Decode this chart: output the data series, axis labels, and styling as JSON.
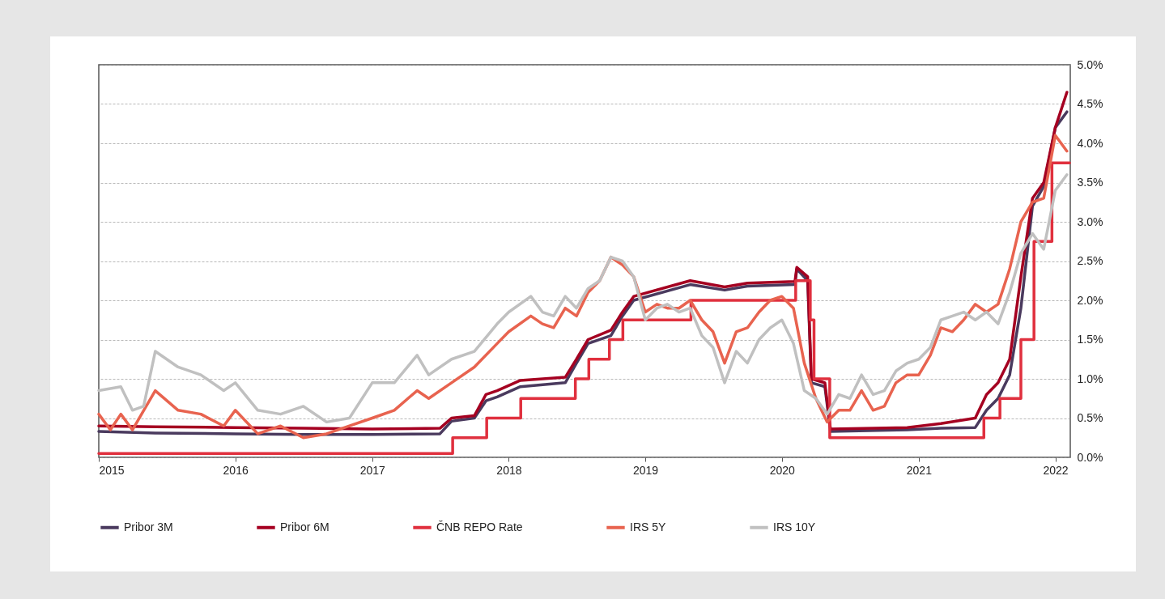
{
  "chart_data": {
    "type": "line",
    "xlim": [
      "2015-01-01",
      "2022-02-10"
    ],
    "xticks": [
      "2015",
      "2016",
      "2017",
      "2018",
      "2019",
      "2020",
      "2021",
      "2022"
    ],
    "ylim": [
      0,
      5
    ],
    "yticks": [
      {
        "value": 0,
        "label": "0.0%"
      },
      {
        "value": 0.5,
        "label": "0.5%"
      },
      {
        "value": 1,
        "label": "1.0%"
      },
      {
        "value": 1.5,
        "label": "1.5%"
      },
      {
        "value": 2,
        "label": "2.0%"
      },
      {
        "value": 2.5,
        "label": "2.5%"
      },
      {
        "value": 3,
        "label": "3.0%"
      },
      {
        "value": 3.5,
        "label": "3.5%"
      },
      {
        "value": 4,
        "label": "4.0%"
      },
      {
        "value": 4.5,
        "label": "4.5%"
      },
      {
        "value": 5,
        "label": "5.0%"
      }
    ],
    "grid": "y",
    "legend": "bottom",
    "line_style": "solid",
    "marker": "none",
    "series": [
      {
        "name": "Pribor 3M",
        "color": "#4a3a5e",
        "x": [
          "2015-01",
          "2015-06",
          "2016-01",
          "2016-07",
          "2017-01",
          "2017-07",
          "2017-08",
          "2017-10",
          "2017-11",
          "2017-12",
          "2018-02",
          "2018-06",
          "2018-07",
          "2018-08",
          "2018-10",
          "2018-11",
          "2018-12",
          "2019-05",
          "2019-08",
          "2019-10",
          "2020-02-05",
          "2020-02-10",
          "2020-03-10",
          "2020-03-20",
          "2020-04-25",
          "2020-05-10",
          "2020-12",
          "2021-03",
          "2021-06",
          "2021-07",
          "2021-08",
          "2021-09",
          "2021-10",
          "2021-11",
          "2021-12",
          "2022-01",
          "2022-02"
        ],
        "values": [
          0.33,
          0.31,
          0.3,
          0.29,
          0.29,
          0.3,
          0.46,
          0.5,
          0.72,
          0.77,
          0.9,
          0.95,
          1.2,
          1.45,
          1.55,
          1.8,
          2.0,
          2.2,
          2.13,
          2.18,
          2.2,
          2.4,
          2.25,
          0.95,
          0.9,
          0.33,
          0.35,
          0.37,
          0.38,
          0.6,
          0.75,
          1.05,
          1.9,
          3.2,
          3.45,
          4.2,
          4.4
        ]
      },
      {
        "name": "Pribor 6M",
        "color": "#a50021",
        "x": [
          "2015-01",
          "2015-06",
          "2016-01",
          "2016-07",
          "2017-01",
          "2017-07",
          "2017-08",
          "2017-10",
          "2017-11",
          "2017-12",
          "2018-02",
          "2018-06",
          "2018-07",
          "2018-08",
          "2018-10",
          "2018-11",
          "2018-12",
          "2019-05",
          "2019-08",
          "2019-10",
          "2020-02-05",
          "2020-02-10",
          "2020-03-10",
          "2020-03-20",
          "2020-04-25",
          "2020-05-10",
          "2020-12",
          "2021-03",
          "2021-06",
          "2021-07",
          "2021-08",
          "2021-09",
          "2021-10",
          "2021-11",
          "2021-12",
          "2022-01",
          "2022-02"
        ],
        "values": [
          0.4,
          0.39,
          0.38,
          0.37,
          0.36,
          0.37,
          0.5,
          0.53,
          0.8,
          0.85,
          0.98,
          1.02,
          1.25,
          1.5,
          1.62,
          1.85,
          2.05,
          2.25,
          2.17,
          2.22,
          2.24,
          2.42,
          2.3,
          1.0,
          0.95,
          0.36,
          0.38,
          0.43,
          0.5,
          0.8,
          0.95,
          1.25,
          2.3,
          3.3,
          3.5,
          4.2,
          4.65
        ]
      },
      {
        "name": "ČNB REPO Rate",
        "color": "#e0303e",
        "type": "step",
        "x": [
          "2015-01-01",
          "2017-08-04",
          "2017-11-03",
          "2018-02-02",
          "2018-06-28",
          "2018-08-03",
          "2018-09-27",
          "2018-11-02",
          "2019-05-03",
          "2020-02-07",
          "2020-03-17",
          "2020-03-27",
          "2020-05-08",
          "2021-06-24",
          "2021-08-06",
          "2021-10-01",
          "2021-11-05",
          "2021-12-23",
          "2022-02-08"
        ],
        "values": [
          0.05,
          0.25,
          0.5,
          0.75,
          1.0,
          1.25,
          1.5,
          1.75,
          2.0,
          2.25,
          1.75,
          1.0,
          0.25,
          0.5,
          0.75,
          1.5,
          2.75,
          3.75,
          3.75
        ]
      },
      {
        "name": "IRS 5Y",
        "color": "#e8634f",
        "x": [
          "2015-01",
          "2015-02",
          "2015-03",
          "2015-04",
          "2015-06",
          "2015-08",
          "2015-10",
          "2015-12",
          "2016-01",
          "2016-03",
          "2016-05",
          "2016-07",
          "2016-09",
          "2016-11",
          "2017-01",
          "2017-03",
          "2017-05",
          "2017-06",
          "2017-08",
          "2017-10",
          "2017-12",
          "2018-01",
          "2018-03",
          "2018-04",
          "2018-05",
          "2018-06",
          "2018-07",
          "2018-08",
          "2018-09",
          "2018-10",
          "2018-11",
          "2018-12",
          "2019-01",
          "2019-02",
          "2019-03",
          "2019-04",
          "2019-05",
          "2019-06",
          "2019-07",
          "2019-08",
          "2019-09",
          "2019-10",
          "2019-11",
          "2019-12",
          "2020-01",
          "2020-02",
          "2020-03",
          "2020-04",
          "2020-05",
          "2020-06",
          "2020-07",
          "2020-08",
          "2020-09",
          "2020-10",
          "2020-11",
          "2020-12",
          "2021-01",
          "2021-02",
          "2021-03",
          "2021-04",
          "2021-05",
          "2021-06",
          "2021-07",
          "2021-08",
          "2021-09",
          "2021-10",
          "2021-11",
          "2021-12",
          "2022-01",
          "2022-02"
        ],
        "values": [
          0.55,
          0.35,
          0.55,
          0.35,
          0.85,
          0.6,
          0.55,
          0.4,
          0.6,
          0.3,
          0.4,
          0.25,
          0.3,
          0.4,
          0.5,
          0.6,
          0.85,
          0.75,
          0.95,
          1.15,
          1.45,
          1.6,
          1.8,
          1.7,
          1.65,
          1.9,
          1.8,
          2.1,
          2.25,
          2.55,
          2.45,
          2.3,
          1.85,
          1.95,
          1.9,
          1.9,
          2.0,
          1.75,
          1.6,
          1.2,
          1.6,
          1.65,
          1.85,
          2.0,
          2.05,
          1.9,
          1.2,
          0.75,
          0.45,
          0.6,
          0.6,
          0.85,
          0.6,
          0.65,
          0.95,
          1.05,
          1.05,
          1.3,
          1.65,
          1.6,
          1.75,
          1.95,
          1.85,
          1.95,
          2.4,
          3.0,
          3.25,
          3.3,
          4.1,
          3.9
        ]
      },
      {
        "name": "IRS 10Y",
        "color": "#c0c0c0",
        "x": [
          "2015-01",
          "2015-03",
          "2015-04",
          "2015-05",
          "2015-06",
          "2015-08",
          "2015-10",
          "2015-12",
          "2016-01",
          "2016-03",
          "2016-05",
          "2016-07",
          "2016-09",
          "2016-11",
          "2017-01",
          "2017-03",
          "2017-05",
          "2017-06",
          "2017-08",
          "2017-10",
          "2017-12",
          "2018-01",
          "2018-03",
          "2018-04",
          "2018-05",
          "2018-06",
          "2018-07",
          "2018-08",
          "2018-09",
          "2018-10",
          "2018-11",
          "2018-12",
          "2019-01",
          "2019-02",
          "2019-03",
          "2019-04",
          "2019-05",
          "2019-06",
          "2019-07",
          "2019-08",
          "2019-09",
          "2019-10",
          "2019-11",
          "2019-12",
          "2020-01",
          "2020-02",
          "2020-03",
          "2020-04",
          "2020-05",
          "2020-06",
          "2020-07",
          "2020-08",
          "2020-09",
          "2020-10",
          "2020-11",
          "2020-12",
          "2021-01",
          "2021-02",
          "2021-03",
          "2021-04",
          "2021-05",
          "2021-06",
          "2021-07",
          "2021-08",
          "2021-09",
          "2021-10",
          "2021-11",
          "2021-12",
          "2022-01",
          "2022-02"
        ],
        "values": [
          0.85,
          0.9,
          0.6,
          0.65,
          1.35,
          1.15,
          1.05,
          0.85,
          0.95,
          0.6,
          0.55,
          0.65,
          0.45,
          0.5,
          0.95,
          0.95,
          1.3,
          1.05,
          1.25,
          1.35,
          1.7,
          1.85,
          2.05,
          1.85,
          1.8,
          2.05,
          1.9,
          2.15,
          2.25,
          2.55,
          2.5,
          2.3,
          1.75,
          1.9,
          1.95,
          1.85,
          1.9,
          1.55,
          1.4,
          0.95,
          1.35,
          1.2,
          1.5,
          1.65,
          1.75,
          1.45,
          0.85,
          0.75,
          0.55,
          0.8,
          0.75,
          1.05,
          0.8,
          0.85,
          1.1,
          1.2,
          1.25,
          1.4,
          1.75,
          1.8,
          1.85,
          1.75,
          1.85,
          1.7,
          2.1,
          2.6,
          2.85,
          2.65,
          3.4,
          3.6
        ]
      }
    ]
  }
}
